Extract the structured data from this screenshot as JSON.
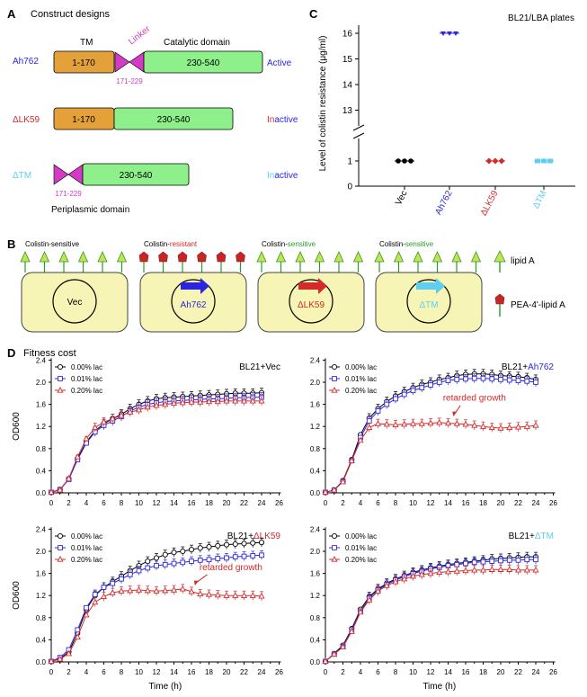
{
  "panelA": {
    "letter": "A",
    "title": "Construct designs",
    "label_tm": "TM",
    "label_linker": "Linker",
    "label_catalytic": "Catalytic domain",
    "label_periplasmic": "Periplasmic domain",
    "constructs": [
      {
        "name": "Ah762",
        "tm": "1-170",
        "linker_range": "171-229",
        "cat": "230-540",
        "status_prefix": "",
        "status_suffix": "Active"
      },
      {
        "name": "ΔLK59",
        "tm": "1-170",
        "cat": "230-540",
        "status_prefix": "In",
        "status_suffix": "active"
      },
      {
        "name": "ΔTM",
        "linker_range": "171-229",
        "cat": "230-540",
        "status_prefix": "In",
        "status_suffix": "active"
      }
    ],
    "colors": {
      "tm": "#e4a13a",
      "catalytic": "#8ef08a",
      "linker": "#d33bc4",
      "ah762": "#2b25e0",
      "dlk59": "#d42a2a",
      "dtm": "#5ecff0"
    }
  },
  "panelB": {
    "letter": "B",
    "cells": [
      {
        "title_prefix": "Colistin-",
        "title_suffix": "sensitive",
        "suffix_color": "#000000",
        "plasmid": "Vec"
      },
      {
        "title_prefix": "Colistin-",
        "title_suffix": "resistant",
        "suffix_color": "#d42a2a",
        "plasmid": "Ah762"
      },
      {
        "title_prefix": "Colistin-",
        "title_suffix": "sensitive",
        "suffix_color": "#2b9a2b",
        "plasmid": "ΔLK59"
      },
      {
        "title_prefix": "Colistin-",
        "title_suffix": "sensitive",
        "suffix_color": "#2b9a2b",
        "plasmid": "ΔTM"
      }
    ],
    "legend_lipidA": "lipid A",
    "legend_pea": "PEA-4'-lipid A"
  },
  "panelC": {
    "letter": "C",
    "title": "BL21/LBA plates",
    "ylabel": "Level of colistin resistance (μg/ml)",
    "yticks_upper": [
      "13",
      "14",
      "15",
      "16"
    ],
    "yticks_lower": [
      "0",
      "1"
    ]
  },
  "panelD": {
    "letter": "D",
    "title": "Fitness cost",
    "xlabel": "Time (h)",
    "ylabel": "OD600",
    "legend": [
      "0.00% lac",
      "0.01% lac",
      "0.20% lac"
    ],
    "xticks": [
      "0",
      "2",
      "4",
      "6",
      "8",
      "10",
      "12",
      "14",
      "16",
      "18",
      "20",
      "22",
      "24",
      "26"
    ],
    "yticks": [
      "0.0",
      "0.4",
      "0.8",
      "1.2",
      "1.6",
      "2.0",
      "2.4"
    ],
    "annotation": "retarded growth",
    "plot_titles": [
      {
        "prefix": "BL21+",
        "name": "Vec",
        "color": "#000000"
      },
      {
        "prefix": "BL21+",
        "name": "Ah762",
        "color": "#2b25e0"
      },
      {
        "prefix": "BL21+",
        "name": "ΔLK59",
        "color": "#d42a2a"
      },
      {
        "prefix": "BL21+",
        "name": "ΔTM",
        "color": "#5ecff0"
      }
    ]
  },
  "chart_data": [
    {
      "type": "scatter",
      "title": "BL21/LBA plates",
      "ylabel": "Level of colistin resistance (μg/ml)",
      "categories": [
        "Vec",
        "Ah762",
        "ΔLK59",
        "ΔTM"
      ],
      "values": [
        [
          1,
          1,
          1
        ],
        [
          16,
          16,
          16
        ],
        [
          1,
          1,
          1
        ],
        [
          1,
          1,
          1
        ]
      ],
      "colors": [
        "#000000",
        "#2b25e0",
        "#d42a2a",
        "#5ecff0"
      ],
      "axis_break": [
        1.5,
        12.5
      ]
    },
    {
      "type": "line",
      "title": "BL21+Vec",
      "xlabel": "Time (h)",
      "ylabel": "OD600",
      "xlim": [
        0,
        26
      ],
      "ylim": [
        0,
        2.4
      ],
      "x": [
        0,
        1,
        2,
        3,
        4,
        5,
        6,
        7,
        8,
        9,
        10,
        11,
        12,
        13,
        14,
        15,
        16,
        17,
        18,
        19,
        20,
        21,
        22,
        23,
        24
      ],
      "series": [
        {
          "name": "0.00% lac",
          "color": "#000000",
          "marker": "circle",
          "values": [
            0.01,
            0.06,
            0.25,
            0.62,
            0.92,
            1.12,
            1.25,
            1.34,
            1.42,
            1.52,
            1.6,
            1.66,
            1.7,
            1.72,
            1.73,
            1.74,
            1.75,
            1.76,
            1.77,
            1.78,
            1.79,
            1.8,
            1.8,
            1.8,
            1.81
          ]
        },
        {
          "name": "0.01% lac",
          "color": "#2b25e0",
          "marker": "square",
          "values": [
            0.01,
            0.06,
            0.24,
            0.6,
            0.9,
            1.1,
            1.22,
            1.3,
            1.38,
            1.48,
            1.55,
            1.6,
            1.63,
            1.65,
            1.66,
            1.67,
            1.68,
            1.69,
            1.7,
            1.7,
            1.71,
            1.72,
            1.72,
            1.73,
            1.73
          ]
        },
        {
          "name": "0.20% lac",
          "color": "#d42a2a",
          "marker": "triangle",
          "values": [
            0.01,
            0.05,
            0.26,
            0.65,
            0.98,
            1.18,
            1.28,
            1.34,
            1.4,
            1.46,
            1.5,
            1.55,
            1.58,
            1.6,
            1.62,
            1.63,
            1.64,
            1.64,
            1.65,
            1.65,
            1.66,
            1.66,
            1.66,
            1.66,
            1.66
          ]
        }
      ]
    },
    {
      "type": "line",
      "title": "BL21+Ah762",
      "xlabel": "Time (h)",
      "ylabel": "OD600",
      "xlim": [
        0,
        26
      ],
      "ylim": [
        0,
        2.4
      ],
      "x": [
        0,
        1,
        2,
        3,
        4,
        5,
        6,
        7,
        8,
        9,
        10,
        11,
        12,
        13,
        14,
        15,
        16,
        17,
        18,
        19,
        20,
        21,
        22,
        23,
        24
      ],
      "series": [
        {
          "name": "0.00% lac",
          "color": "#000000",
          "marker": "circle",
          "values": [
            0.01,
            0.05,
            0.22,
            0.6,
            1.05,
            1.35,
            1.52,
            1.65,
            1.75,
            1.83,
            1.9,
            1.96,
            2.0,
            2.05,
            2.08,
            2.12,
            2.14,
            2.15,
            2.15,
            2.14,
            2.12,
            2.11,
            2.1,
            2.08,
            2.05
          ]
        },
        {
          "name": "0.01% lac",
          "color": "#2b25e0",
          "marker": "square",
          "values": [
            0.01,
            0.05,
            0.21,
            0.58,
            1.0,
            1.3,
            1.48,
            1.6,
            1.7,
            1.78,
            1.85,
            1.9,
            1.95,
            2.0,
            2.03,
            2.05,
            2.06,
            2.07,
            2.07,
            2.06,
            2.05,
            2.04,
            2.03,
            2.02,
            2.0
          ]
        },
        {
          "name": "0.20% lac",
          "color": "#d42a2a",
          "marker": "triangle",
          "values": [
            0.01,
            0.05,
            0.2,
            0.58,
            0.95,
            1.18,
            1.25,
            1.24,
            1.23,
            1.24,
            1.25,
            1.25,
            1.26,
            1.27,
            1.26,
            1.25,
            1.24,
            1.22,
            1.2,
            1.18,
            1.17,
            1.18,
            1.19,
            1.2,
            1.22
          ]
        }
      ]
    },
    {
      "type": "line",
      "title": "BL21+ΔLK59",
      "xlabel": "Time (h)",
      "ylabel": "OD600",
      "xlim": [
        0,
        26
      ],
      "ylim": [
        0,
        2.4
      ],
      "x": [
        0,
        1,
        2,
        3,
        4,
        5,
        6,
        7,
        8,
        9,
        10,
        11,
        12,
        13,
        14,
        15,
        16,
        17,
        18,
        19,
        20,
        21,
        22,
        23,
        24
      ],
      "series": [
        {
          "name": "0.00% lac",
          "color": "#000000",
          "marker": "circle",
          "values": [
            0.01,
            0.06,
            0.18,
            0.52,
            0.95,
            1.2,
            1.35,
            1.45,
            1.55,
            1.65,
            1.74,
            1.82,
            1.88,
            1.94,
            1.98,
            2.0,
            2.03,
            2.06,
            2.08,
            2.1,
            2.12,
            2.13,
            2.14,
            2.15,
            2.16
          ]
        },
        {
          "name": "0.01% lac",
          "color": "#2b25e0",
          "marker": "square",
          "values": [
            0.01,
            0.08,
            0.22,
            0.58,
            0.98,
            1.22,
            1.35,
            1.42,
            1.5,
            1.58,
            1.65,
            1.7,
            1.74,
            1.76,
            1.78,
            1.8,
            1.82,
            1.84,
            1.85,
            1.87,
            1.88,
            1.9,
            1.91,
            1.92,
            1.93
          ]
        },
        {
          "name": "0.20% lac",
          "color": "#d42a2a",
          "marker": "triangle",
          "values": [
            0.01,
            0.05,
            0.15,
            0.45,
            0.85,
            1.08,
            1.18,
            1.25,
            1.28,
            1.29,
            1.3,
            1.29,
            1.28,
            1.29,
            1.3,
            1.32,
            1.27,
            1.23,
            1.22,
            1.21,
            1.2,
            1.2,
            1.2,
            1.2,
            1.19
          ]
        }
      ]
    },
    {
      "type": "line",
      "title": "BL21+ΔTM",
      "xlabel": "Time (h)",
      "ylabel": "OD600",
      "xlim": [
        0,
        26
      ],
      "ylim": [
        0,
        2.4
      ],
      "x": [
        0,
        1,
        2,
        3,
        4,
        5,
        6,
        7,
        8,
        9,
        10,
        11,
        12,
        13,
        14,
        15,
        16,
        17,
        18,
        19,
        20,
        21,
        22,
        23,
        24
      ],
      "series": [
        {
          "name": "0.00% lac",
          "color": "#000000",
          "marker": "circle",
          "values": [
            0.01,
            0.15,
            0.3,
            0.6,
            0.95,
            1.18,
            1.32,
            1.42,
            1.5,
            1.56,
            1.62,
            1.66,
            1.7,
            1.73,
            1.76,
            1.78,
            1.8,
            1.82,
            1.84,
            1.86,
            1.87,
            1.88,
            1.89,
            1.9,
            1.9
          ]
        },
        {
          "name": "0.01% lac",
          "color": "#2b25e0",
          "marker": "square",
          "values": [
            0.01,
            0.14,
            0.28,
            0.58,
            0.92,
            1.15,
            1.3,
            1.4,
            1.48,
            1.54,
            1.6,
            1.64,
            1.68,
            1.71,
            1.74,
            1.76,
            1.78,
            1.8,
            1.81,
            1.82,
            1.83,
            1.84,
            1.84,
            1.85,
            1.85
          ]
        },
        {
          "name": "0.20% lac",
          "color": "#d42a2a",
          "marker": "triangle",
          "values": [
            0.01,
            0.14,
            0.27,
            0.55,
            0.9,
            1.12,
            1.28,
            1.38,
            1.45,
            1.5,
            1.55,
            1.58,
            1.6,
            1.62,
            1.63,
            1.64,
            1.65,
            1.66,
            1.66,
            1.67,
            1.67,
            1.67,
            1.66,
            1.66,
            1.66
          ]
        }
      ]
    }
  ]
}
